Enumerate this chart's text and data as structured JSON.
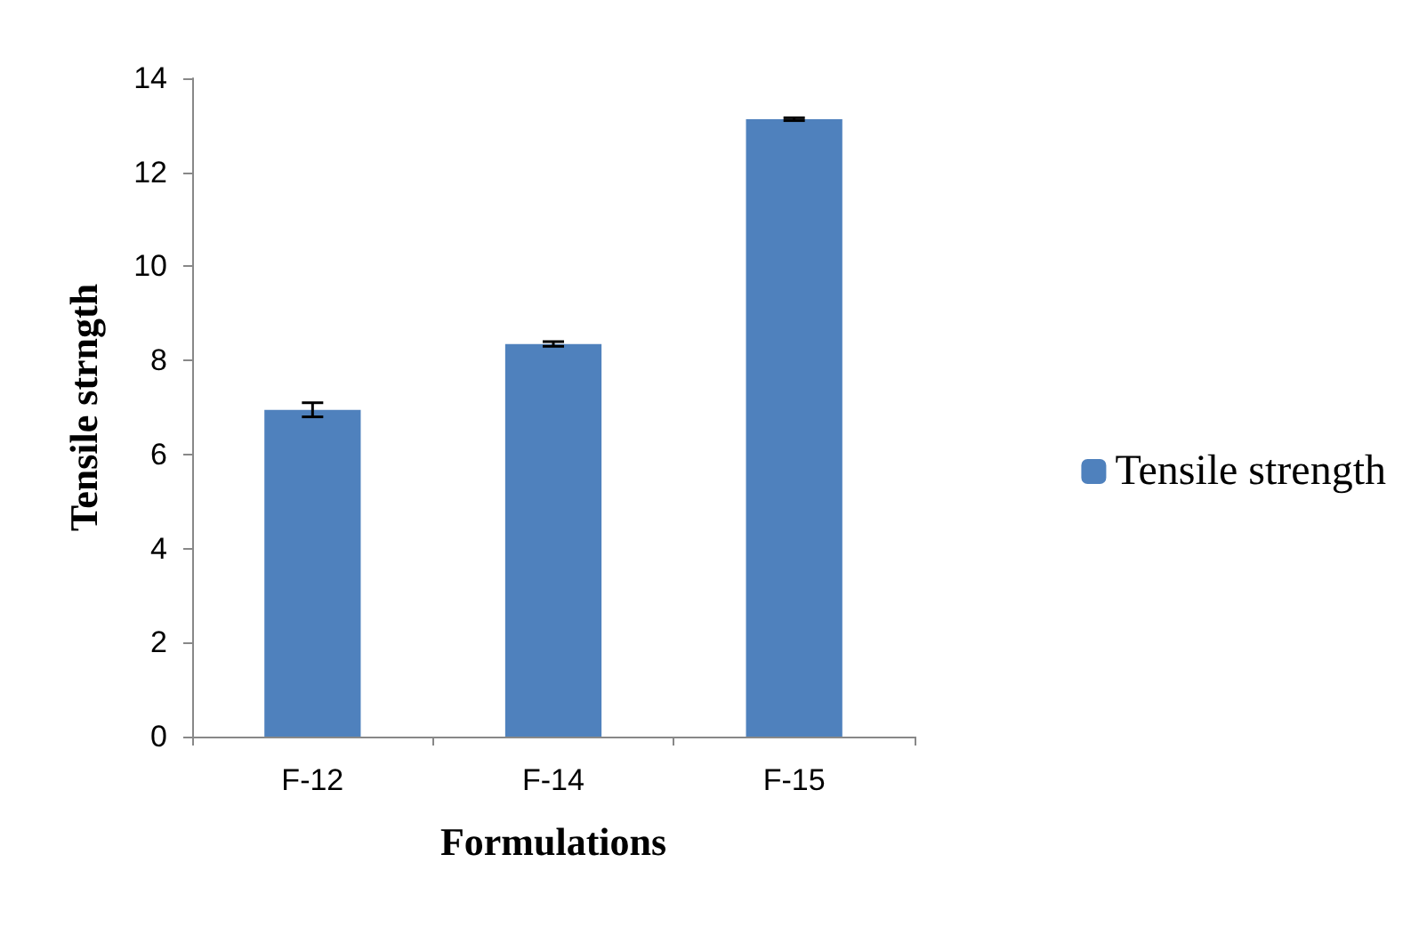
{
  "chart_data": {
    "type": "bar",
    "xlabel": "Formulations",
    "ylabel": "Tensile strngth",
    "categories": [
      "F-12",
      "F-14",
      "F-15"
    ],
    "series": [
      {
        "name": "Tensile strength",
        "color": "#4f81bd",
        "values": [
          6.95,
          8.35,
          13.13
        ],
        "errors": [
          0.15,
          0.05,
          0.03
        ]
      }
    ],
    "ylim": [
      0,
      14
    ],
    "yticks": [
      0,
      2,
      4,
      6,
      8,
      10,
      12,
      14
    ],
    "grid": false,
    "legend": "right"
  }
}
